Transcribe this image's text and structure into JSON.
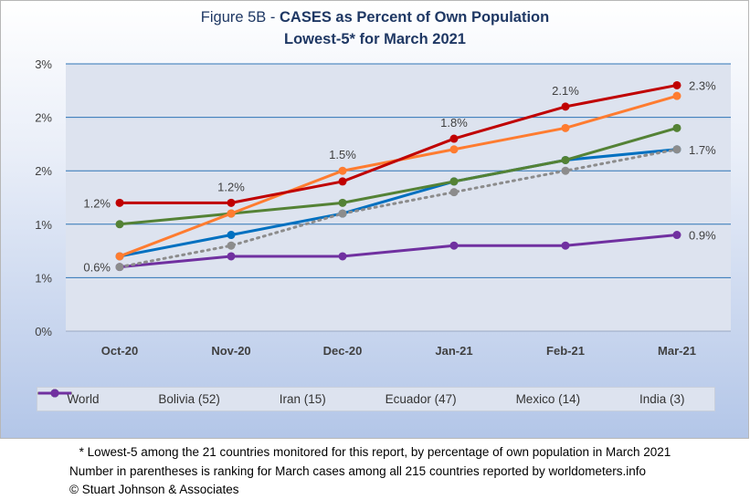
{
  "header": {
    "title_prefix": "Figure 5B - ",
    "title_bold": "CASES as Percent of Own Population",
    "subtitle": "Lowest-5* for March 2021"
  },
  "chart_data": {
    "type": "line",
    "categories": [
      "Oct-20",
      "Nov-20",
      "Dec-20",
      "Jan-21",
      "Feb-21",
      "Mar-21"
    ],
    "y_tick_labels": [
      "0%",
      "1%",
      "1%",
      "2%",
      "2%",
      "3%"
    ],
    "ylim": [
      0,
      2.5
    ],
    "y_ticks": [
      0,
      0.5,
      1.0,
      1.5,
      2.0,
      2.5
    ],
    "grid": true,
    "legend_position": "bottom",
    "series": [
      {
        "name": "World",
        "color": "#8c8c8c",
        "dashed": true,
        "values": [
          0.6,
          0.8,
          1.1,
          1.3,
          1.5,
          1.7
        ]
      },
      {
        "name": "Bolivia (52)",
        "color": "#c00000",
        "dashed": false,
        "values": [
          1.2,
          1.2,
          1.4,
          1.8,
          2.1,
          2.3
        ]
      },
      {
        "name": "Iran (15)",
        "color": "#ff7c30",
        "dashed": false,
        "values": [
          0.7,
          1.1,
          1.5,
          1.7,
          1.9,
          2.2
        ]
      },
      {
        "name": "Ecuador (47)",
        "color": "#548235",
        "dashed": false,
        "values": [
          1.0,
          1.1,
          1.2,
          1.4,
          1.6,
          1.9
        ]
      },
      {
        "name": "Mexico (14)",
        "color": "#0070c0",
        "dashed": false,
        "values": [
          0.7,
          0.9,
          1.1,
          1.4,
          1.6,
          1.7
        ]
      },
      {
        "name": "India (3)",
        "color": "#7030a0",
        "dashed": false,
        "values": [
          0.6,
          0.7,
          0.7,
          0.8,
          0.8,
          0.9
        ]
      }
    ],
    "annotations": [
      {
        "text": "1.2%",
        "category": "Oct-20",
        "value": 1.2,
        "anchor": "left"
      },
      {
        "text": "0.6%",
        "category": "Oct-20",
        "value": 0.6,
        "anchor": "left"
      },
      {
        "text": "1.2%",
        "category": "Nov-20",
        "value": 1.2,
        "anchor": "above"
      },
      {
        "text": "1.5%",
        "category": "Dec-20",
        "value": 1.5,
        "anchor": "above"
      },
      {
        "text": "1.8%",
        "category": "Jan-21",
        "value": 1.8,
        "anchor": "above"
      },
      {
        "text": "2.1%",
        "category": "Feb-21",
        "value": 2.1,
        "anchor": "above"
      },
      {
        "text": "2.3%",
        "category": "Mar-21",
        "value": 2.3,
        "anchor": "right"
      },
      {
        "text": "1.7%",
        "category": "Mar-21",
        "value": 1.7,
        "anchor": "right"
      },
      {
        "text": "0.9%",
        "category": "Mar-21",
        "value": 0.9,
        "anchor": "right"
      }
    ]
  },
  "footnotes": {
    "line1": "* Lowest-5 among the 21 countries monitored for this report, by percentage of own population in March 2021",
    "line2": "Number in parentheses is ranking for March cases among all 215 countries reported by worldometers.info",
    "line3": "© Stuart Johnson & Associates"
  }
}
